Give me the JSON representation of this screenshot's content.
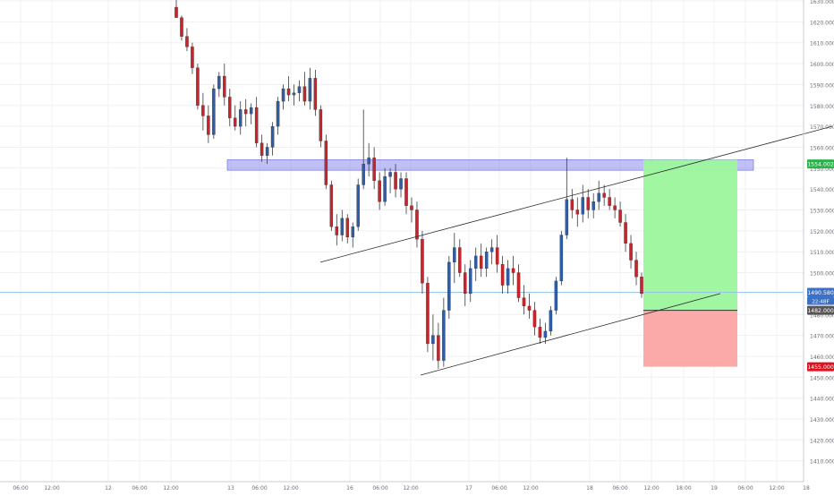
{
  "chart_data": {
    "type": "candlestick",
    "title": "",
    "xlabel": "",
    "ylabel": "",
    "ylim": [
      1405,
      1632
    ],
    "grid": true,
    "y_ticks": [
      "1630.000",
      "1620.000",
      "1610.000",
      "1600.000",
      "1590.000",
      "1580.000",
      "1570.000",
      "1560.000",
      "1550.000",
      "1540.000",
      "1530.000",
      "1520.000",
      "1510.000",
      "1500.000",
      "1490.000",
      "1480.000",
      "1470.000",
      "1460.000",
      "1450.000",
      "1440.000",
      "1430.000",
      "1420.000",
      "1410.000"
    ],
    "x_ticks": [
      "06:00",
      "12:00",
      "12",
      "06:00",
      "12:00",
      "13",
      "06:00",
      "12:00",
      "16",
      "06:00",
      "12:00",
      "17",
      "06:00",
      "12:00",
      "18",
      "06:00",
      "12:00",
      "18:00",
      "19",
      "06:00",
      "12:00",
      "18"
    ],
    "candles": [
      {
        "o": 1627,
        "h": 1632,
        "l": 1622,
        "c": 1622
      },
      {
        "o": 1622,
        "h": 1623,
        "l": 1611,
        "c": 1613
      },
      {
        "o": 1613,
        "h": 1617,
        "l": 1606,
        "c": 1608
      },
      {
        "o": 1608,
        "h": 1610,
        "l": 1595,
        "c": 1598
      },
      {
        "o": 1598,
        "h": 1600,
        "l": 1578,
        "c": 1580
      },
      {
        "o": 1580,
        "h": 1586,
        "l": 1568,
        "c": 1575
      },
      {
        "o": 1575,
        "h": 1580,
        "l": 1562,
        "c": 1566
      },
      {
        "o": 1566,
        "h": 1590,
        "l": 1564,
        "c": 1588
      },
      {
        "o": 1588,
        "h": 1596,
        "l": 1584,
        "c": 1594
      },
      {
        "o": 1594,
        "h": 1600,
        "l": 1580,
        "c": 1584
      },
      {
        "o": 1584,
        "h": 1588,
        "l": 1570,
        "c": 1574
      },
      {
        "o": 1574,
        "h": 1580,
        "l": 1568,
        "c": 1570
      },
      {
        "o": 1570,
        "h": 1582,
        "l": 1566,
        "c": 1578
      },
      {
        "o": 1578,
        "h": 1583,
        "l": 1570,
        "c": 1576
      },
      {
        "o": 1576,
        "h": 1581,
        "l": 1571,
        "c": 1579
      },
      {
        "o": 1579,
        "h": 1584,
        "l": 1560,
        "c": 1562
      },
      {
        "o": 1562,
        "h": 1566,
        "l": 1553,
        "c": 1556
      },
      {
        "o": 1556,
        "h": 1562,
        "l": 1552,
        "c": 1560
      },
      {
        "o": 1560,
        "h": 1572,
        "l": 1556,
        "c": 1570
      },
      {
        "o": 1570,
        "h": 1584,
        "l": 1566,
        "c": 1582
      },
      {
        "o": 1582,
        "h": 1590,
        "l": 1578,
        "c": 1588
      },
      {
        "o": 1588,
        "h": 1594,
        "l": 1582,
        "c": 1585
      },
      {
        "o": 1585,
        "h": 1590,
        "l": 1580,
        "c": 1586
      },
      {
        "o": 1586,
        "h": 1592,
        "l": 1582,
        "c": 1589
      },
      {
        "o": 1589,
        "h": 1596,
        "l": 1580,
        "c": 1582
      },
      {
        "o": 1582,
        "h": 1598,
        "l": 1578,
        "c": 1593
      },
      {
        "o": 1593,
        "h": 1597,
        "l": 1575,
        "c": 1578
      },
      {
        "o": 1578,
        "h": 1580,
        "l": 1560,
        "c": 1563
      },
      {
        "o": 1563,
        "h": 1566,
        "l": 1540,
        "c": 1542
      },
      {
        "o": 1542,
        "h": 1544,
        "l": 1520,
        "c": 1522
      },
      {
        "o": 1522,
        "h": 1528,
        "l": 1513,
        "c": 1518
      },
      {
        "o": 1518,
        "h": 1530,
        "l": 1515,
        "c": 1526
      },
      {
        "o": 1526,
        "h": 1528,
        "l": 1514,
        "c": 1517
      },
      {
        "o": 1517,
        "h": 1524,
        "l": 1512,
        "c": 1522
      },
      {
        "o": 1522,
        "h": 1545,
        "l": 1520,
        "c": 1542
      },
      {
        "o": 1542,
        "h": 1578,
        "l": 1540,
        "c": 1552
      },
      {
        "o": 1552,
        "h": 1562,
        "l": 1546,
        "c": 1555
      },
      {
        "o": 1555,
        "h": 1560,
        "l": 1540,
        "c": 1544
      },
      {
        "o": 1544,
        "h": 1548,
        "l": 1530,
        "c": 1534
      },
      {
        "o": 1534,
        "h": 1550,
        "l": 1532,
        "c": 1546
      },
      {
        "o": 1546,
        "h": 1550,
        "l": 1538,
        "c": 1548
      },
      {
        "o": 1548,
        "h": 1552,
        "l": 1536,
        "c": 1540
      },
      {
        "o": 1540,
        "h": 1548,
        "l": 1536,
        "c": 1545
      },
      {
        "o": 1545,
        "h": 1548,
        "l": 1528,
        "c": 1532
      },
      {
        "o": 1532,
        "h": 1536,
        "l": 1524,
        "c": 1530
      },
      {
        "o": 1530,
        "h": 1534,
        "l": 1512,
        "c": 1516
      },
      {
        "o": 1516,
        "h": 1520,
        "l": 1490,
        "c": 1495
      },
      {
        "o": 1495,
        "h": 1498,
        "l": 1462,
        "c": 1466
      },
      {
        "o": 1466,
        "h": 1480,
        "l": 1458,
        "c": 1470
      },
      {
        "o": 1470,
        "h": 1476,
        "l": 1454,
        "c": 1458
      },
      {
        "o": 1458,
        "h": 1488,
        "l": 1455,
        "c": 1482
      },
      {
        "o": 1482,
        "h": 1508,
        "l": 1478,
        "c": 1505
      },
      {
        "o": 1505,
        "h": 1519,
        "l": 1495,
        "c": 1512
      },
      {
        "o": 1512,
        "h": 1516,
        "l": 1498,
        "c": 1500
      },
      {
        "o": 1500,
        "h": 1504,
        "l": 1484,
        "c": 1490
      },
      {
        "o": 1490,
        "h": 1506,
        "l": 1486,
        "c": 1502
      },
      {
        "o": 1502,
        "h": 1512,
        "l": 1496,
        "c": 1508
      },
      {
        "o": 1508,
        "h": 1514,
        "l": 1498,
        "c": 1502
      },
      {
        "o": 1502,
        "h": 1512,
        "l": 1498,
        "c": 1510
      },
      {
        "o": 1510,
        "h": 1516,
        "l": 1504,
        "c": 1512
      },
      {
        "o": 1512,
        "h": 1518,
        "l": 1500,
        "c": 1504
      },
      {
        "o": 1504,
        "h": 1508,
        "l": 1490,
        "c": 1494
      },
      {
        "o": 1494,
        "h": 1506,
        "l": 1490,
        "c": 1502
      },
      {
        "o": 1502,
        "h": 1508,
        "l": 1494,
        "c": 1500
      },
      {
        "o": 1500,
        "h": 1504,
        "l": 1486,
        "c": 1488
      },
      {
        "o": 1488,
        "h": 1494,
        "l": 1480,
        "c": 1484
      },
      {
        "o": 1484,
        "h": 1490,
        "l": 1478,
        "c": 1482
      },
      {
        "o": 1482,
        "h": 1486,
        "l": 1470,
        "c": 1474
      },
      {
        "o": 1474,
        "h": 1478,
        "l": 1466,
        "c": 1469
      },
      {
        "o": 1469,
        "h": 1476,
        "l": 1466,
        "c": 1472
      },
      {
        "o": 1472,
        "h": 1484,
        "l": 1470,
        "c": 1482
      },
      {
        "o": 1482,
        "h": 1498,
        "l": 1480,
        "c": 1496
      },
      {
        "o": 1496,
        "h": 1520,
        "l": 1494,
        "c": 1518
      },
      {
        "o": 1518,
        "h": 1555,
        "l": 1516,
        "c": 1535
      },
      {
        "o": 1535,
        "h": 1540,
        "l": 1526,
        "c": 1530
      },
      {
        "o": 1530,
        "h": 1536,
        "l": 1522,
        "c": 1528
      },
      {
        "o": 1528,
        "h": 1542,
        "l": 1524,
        "c": 1536
      },
      {
        "o": 1536,
        "h": 1540,
        "l": 1526,
        "c": 1530
      },
      {
        "o": 1530,
        "h": 1538,
        "l": 1526,
        "c": 1534
      },
      {
        "o": 1534,
        "h": 1544,
        "l": 1530,
        "c": 1538
      },
      {
        "o": 1538,
        "h": 1542,
        "l": 1532,
        "c": 1536
      },
      {
        "o": 1536,
        "h": 1540,
        "l": 1530,
        "c": 1532
      },
      {
        "o": 1532,
        "h": 1536,
        "l": 1526,
        "c": 1530
      },
      {
        "o": 1530,
        "h": 1534,
        "l": 1522,
        "c": 1524
      },
      {
        "o": 1524,
        "h": 1528,
        "l": 1510,
        "c": 1514
      },
      {
        "o": 1514,
        "h": 1518,
        "l": 1502,
        "c": 1506
      },
      {
        "o": 1506,
        "h": 1510,
        "l": 1494,
        "c": 1498
      },
      {
        "o": 1498,
        "h": 1500,
        "l": 1488,
        "c": 1490
      }
    ],
    "resistance_zone": {
      "from": 1554,
      "to": 1549
    },
    "current_price": 1490.58,
    "price_labels": {
      "upper": "1554.002",
      "current": "1490.580",
      "countdown": "22:48F",
      "entry": "1482.000",
      "stop": "1455.000"
    },
    "position": {
      "entry": 1482,
      "target": 1554,
      "stop": 1455
    },
    "trendlines": [
      {
        "x1": "16",
        "y1": 1505,
        "x2": "19 18:00",
        "y2": 1570
      },
      {
        "x1": "17 12:00",
        "y1": 1451,
        "x2": "19",
        "y2": 1490
      }
    ],
    "colors": {
      "up": "#2f5ea8",
      "down": "#c7252c",
      "zone": "#8c8cf0",
      "target": "#9cf79c",
      "stop": "#fca4a4",
      "current_line": "#9cc4e4",
      "label_current": "#3b72c8",
      "label_stop": "#e0101d",
      "label_upper": "#29b34a",
      "label_entry": "#555555"
    }
  }
}
